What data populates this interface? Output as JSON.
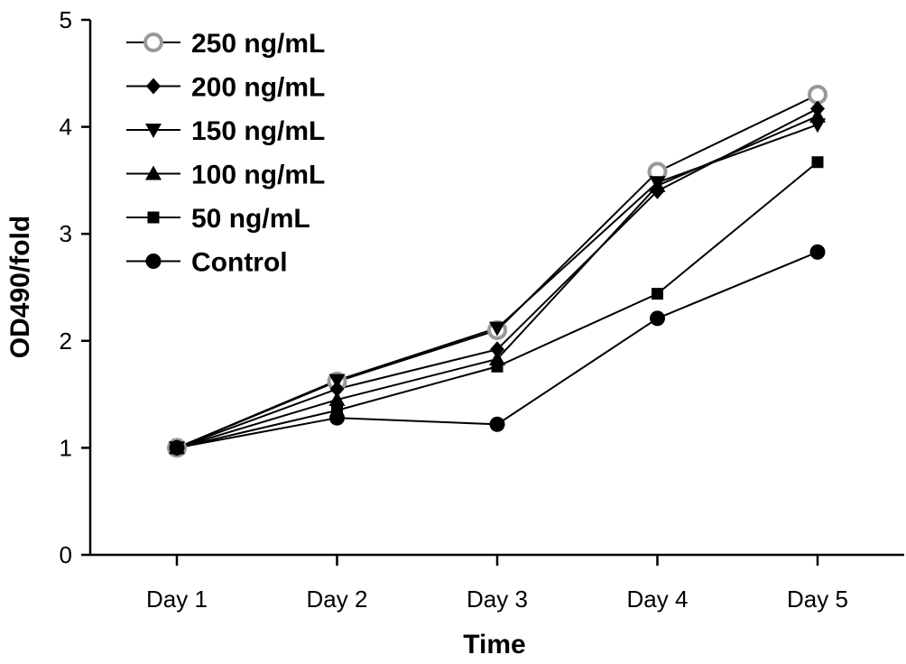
{
  "chart_data": {
    "type": "line",
    "title": "",
    "xlabel": "Time",
    "ylabel": "OD490/fold",
    "categories": [
      "Day 1",
      "Day 2",
      "Day 3",
      "Day 4",
      "Day 5"
    ],
    "ylim": [
      0,
      5
    ],
    "yticks": [
      "0",
      "1",
      "2",
      "3",
      "4",
      "5"
    ],
    "grid": false,
    "legend_position": "top-left",
    "series": [
      {
        "name": "250 ng/mL",
        "marker": "open-circle",
        "color": "#999999",
        "values": [
          1.0,
          1.62,
          2.1,
          3.58,
          4.3
        ]
      },
      {
        "name": "200 ng/mL",
        "marker": "diamond",
        "color": "#000000",
        "values": [
          1.0,
          1.55,
          1.92,
          3.4,
          4.17
        ]
      },
      {
        "name": "150 ng/mL",
        "marker": "triangle-down",
        "color": "#000000",
        "values": [
          1.0,
          1.63,
          2.12,
          3.48,
          4.02
        ]
      },
      {
        "name": "100 ng/mL",
        "marker": "triangle-up",
        "color": "#000000",
        "values": [
          1.0,
          1.45,
          1.83,
          3.45,
          4.1
        ]
      },
      {
        "name": "50 ng/mL",
        "marker": "square",
        "color": "#000000",
        "values": [
          1.0,
          1.35,
          1.76,
          2.44,
          3.67
        ]
      },
      {
        "name": "Control",
        "marker": "circle",
        "color": "#000000",
        "values": [
          1.0,
          1.28,
          1.22,
          2.21,
          2.83
        ]
      }
    ]
  }
}
